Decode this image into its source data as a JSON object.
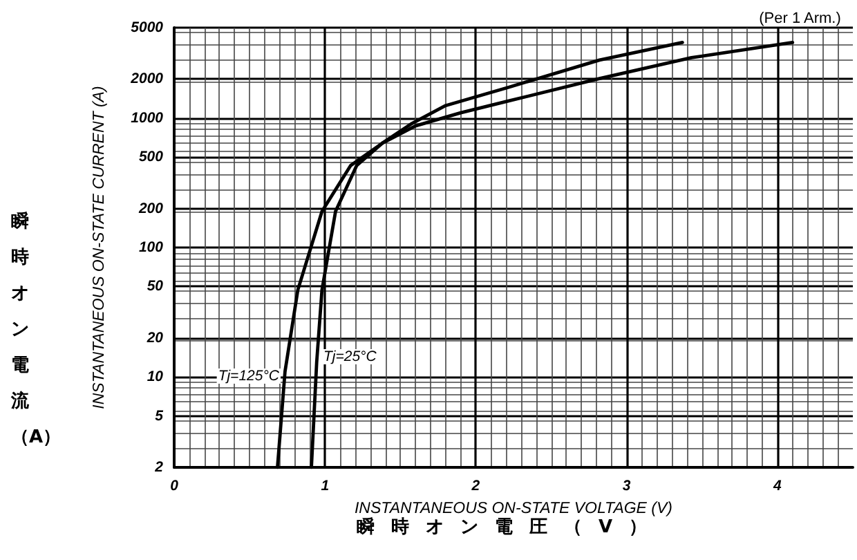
{
  "chart_data": {
    "type": "line",
    "title": "(Per 1 Arm.)",
    "xlabel": "INSTANTANEOUS ON-STATE VOLTAGE (V)",
    "ylabel": "INSTANTANEOUS ON-STATE CURRENT (A)",
    "annotations": [
      "瞬時オン電流（A）",
      "瞬時オン電圧（V）"
    ],
    "log": "y",
    "grid": true,
    "legend": false,
    "marker": "none",
    "line_style": "solid",
    "xlim": [
      0,
      4.5
    ],
    "xticks": [
      0,
      1,
      2,
      3,
      4
    ],
    "ylim": [
      2,
      5000
    ],
    "yticks": [
      2,
      5,
      10,
      20,
      50,
      100,
      200,
      500,
      1000,
      2000,
      5000
    ],
    "series": [
      {
        "name": "Tj=25°C",
        "color": "#000000",
        "x": [
          0.91,
          0.945,
          0.98,
          1.07,
          1.21,
          1.38,
          1.57,
          1.8,
          2.21,
          2.82,
          3.37
        ],
        "values": [
          2,
          13,
          47,
          190,
          430,
          640,
          900,
          1250,
          1720,
          2810,
          3840
        ]
      },
      {
        "name": "Tj=125°C",
        "color": "#000000",
        "x": [
          0.685,
          0.735,
          0.82,
          0.98,
          1.17,
          1.38,
          1.6,
          1.9,
          2.21,
          2.82,
          3.43,
          4.1
        ],
        "values": [
          2,
          11,
          47,
          190,
          430,
          640,
          870,
          1100,
          1350,
          2020,
          2930,
          3840
        ]
      }
    ]
  }
}
